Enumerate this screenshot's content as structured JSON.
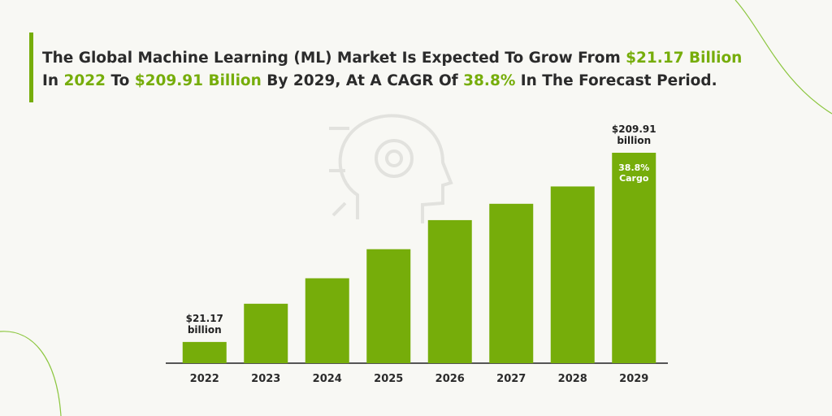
{
  "title_segments": [
    [
      "The Global Machine Learning (ML) Market Is Expected To Grow From ",
      {
        "text": "$21.17 Billion",
        "highlight": true
      }
    ],
    [
      "In ",
      {
        "text": "2022",
        "highlight": true
      },
      " To ",
      {
        "text": "$209.91 Billion",
        "highlight": true
      },
      " By 2029, At A CAGR Of ",
      {
        "text": "38.8%",
        "highlight": true
      },
      " In The Forecast Period."
    ]
  ],
  "chart_data": {
    "type": "bar",
    "categories": [
      "2022",
      "2023",
      "2024",
      "2025",
      "2026",
      "2027",
      "2028",
      "2029"
    ],
    "values": [
      21.17,
      59.3,
      84.7,
      113.7,
      142.7,
      159,
      176.3,
      209.91
    ],
    "value_labels": [
      "$21.17 billion",
      null,
      null,
      null,
      null,
      null,
      null,
      "$209.91 billion"
    ],
    "annotation": "38.8% Cargo",
    "color": "#76ad0a"
  }
}
